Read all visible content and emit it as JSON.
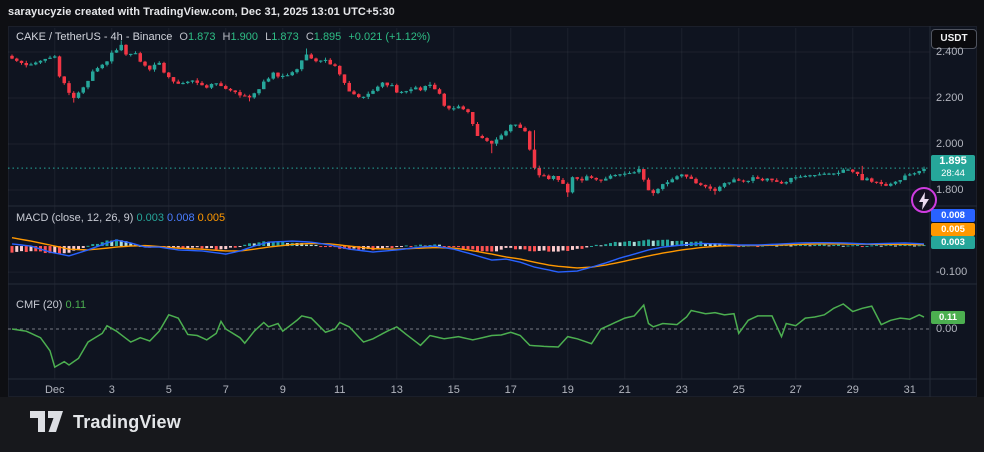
{
  "attribution": "sarayucyzie created with TradingView.com, Dec 31, 2025 13:01 UTC+5:30",
  "footer": {
    "brand": "TradingView"
  },
  "price_axis": {
    "currency_button": "USDT"
  },
  "chart_data": [
    {
      "type": "candlestick",
      "title": "CAKE / TetherUS - 4h - Binance",
      "legend": {
        "series": "CAKE / TetherUS - 4h - Binance",
        "o_label": "O",
        "o": "1.873",
        "h_label": "H",
        "h": "1.900",
        "l_label": "L",
        "l": "1.873",
        "c_label": "C",
        "c": "1.895",
        "change": "+0.021 (+1.12%)"
      },
      "last_price": 1.895,
      "countdown": "28:44",
      "ylim": [
        2.504,
        1.735
      ],
      "y_ticks": [
        2.4,
        2.2,
        2.0,
        1.8
      ],
      "x_labels": [
        "Dec",
        "3",
        "5",
        "7",
        "9",
        "11",
        "13",
        "15",
        "17",
        "19",
        "21",
        "23",
        "25",
        "27",
        "29",
        "31"
      ],
      "x_label_start_index": 9,
      "x_label_step": 12,
      "candle_count": 193,
      "close_path": [
        [
          0,
          2.37
        ],
        [
          2,
          2.355
        ],
        [
          4,
          2.34
        ],
        [
          7,
          2.37
        ],
        [
          9,
          2.385
        ],
        [
          10,
          2.3
        ],
        [
          12,
          2.22
        ],
        [
          13,
          2.2
        ],
        [
          15,
          2.25
        ],
        [
          17,
          2.31
        ],
        [
          20,
          2.36
        ],
        [
          21,
          2.4
        ],
        [
          23,
          2.425
        ],
        [
          24,
          2.385
        ],
        [
          26,
          2.395
        ],
        [
          27,
          2.36
        ],
        [
          29,
          2.33
        ],
        [
          31,
          2.35
        ],
        [
          32,
          2.31
        ],
        [
          34,
          2.275
        ],
        [
          36,
          2.26
        ],
        [
          38,
          2.275
        ],
        [
          41,
          2.25
        ],
        [
          43,
          2.26
        ],
        [
          45,
          2.24
        ],
        [
          47,
          2.23
        ],
        [
          49,
          2.205
        ],
        [
          50,
          2.2
        ],
        [
          52,
          2.24
        ],
        [
          53,
          2.275
        ],
        [
          55,
          2.305
        ],
        [
          56,
          2.29
        ],
        [
          58,
          2.3
        ],
        [
          60,
          2.33
        ],
        [
          62,
          2.385
        ],
        [
          63,
          2.37
        ],
        [
          64,
          2.36
        ],
        [
          66,
          2.37
        ],
        [
          68,
          2.335
        ],
        [
          70,
          2.265
        ],
        [
          71,
          2.23
        ],
        [
          73,
          2.21
        ],
        [
          74,
          2.2
        ],
        [
          76,
          2.23
        ],
        [
          78,
          2.27
        ],
        [
          80,
          2.25
        ],
        [
          81,
          2.22
        ],
        [
          83,
          2.23
        ],
        [
          85,
          2.25
        ],
        [
          86,
          2.24
        ],
        [
          88,
          2.255
        ],
        [
          90,
          2.22
        ],
        [
          91,
          2.17
        ],
        [
          93,
          2.15
        ],
        [
          94,
          2.16
        ],
        [
          96,
          2.14
        ],
        [
          97,
          2.09
        ],
        [
          98,
          2.04
        ],
        [
          99,
          2.02
        ],
        [
          101,
          2.0
        ],
        [
          102,
          2.02
        ],
        [
          104,
          2.06
        ],
        [
          105,
          2.09
        ],
        [
          106,
          2.08
        ],
        [
          108,
          2.055
        ],
        [
          110,
          1.9
        ],
        [
          111,
          1.87
        ],
        [
          113,
          1.845
        ],
        [
          114,
          1.86
        ],
        [
          116,
          1.83
        ],
        [
          117,
          1.795
        ],
        [
          118,
          1.85
        ],
        [
          120,
          1.84
        ],
        [
          121,
          1.86
        ],
        [
          123,
          1.85
        ],
        [
          125,
          1.845
        ],
        [
          126,
          1.86
        ],
        [
          128,
          1.87
        ],
        [
          130,
          1.88
        ],
        [
          131,
          1.872
        ],
        [
          132,
          1.888
        ],
        [
          134,
          1.8
        ],
        [
          135,
          1.79
        ],
        [
          136,
          1.81
        ],
        [
          138,
          1.83
        ],
        [
          140,
          1.86
        ],
        [
          141,
          1.87
        ],
        [
          143,
          1.855
        ],
        [
          144,
          1.825
        ],
        [
          146,
          1.815
        ],
        [
          148,
          1.8
        ],
        [
          149,
          1.82
        ],
        [
          151,
          1.83
        ],
        [
          152,
          1.845
        ],
        [
          154,
          1.84
        ],
        [
          156,
          1.85
        ],
        [
          158,
          1.84
        ],
        [
          159,
          1.85
        ],
        [
          161,
          1.84
        ],
        [
          163,
          1.83
        ],
        [
          164,
          1.85
        ],
        [
          166,
          1.86
        ],
        [
          168,
          1.87
        ],
        [
          169,
          1.86
        ],
        [
          171,
          1.87
        ],
        [
          173,
          1.875
        ],
        [
          174,
          1.88
        ],
        [
          176,
          1.885
        ],
        [
          178,
          1.87
        ],
        [
          179,
          1.845
        ],
        [
          180,
          1.855
        ],
        [
          182,
          1.83
        ],
        [
          184,
          1.818
        ],
        [
          186,
          1.84
        ],
        [
          188,
          1.858
        ],
        [
          190,
          1.872
        ],
        [
          192,
          1.895
        ]
      ],
      "wicks": [
        [
          13,
          "l",
          2.18
        ],
        [
          23,
          "h",
          2.45
        ],
        [
          50,
          "l",
          2.185
        ],
        [
          62,
          "h",
          2.415
        ],
        [
          88,
          "h",
          2.27
        ],
        [
          101,
          "l",
          1.96
        ],
        [
          110,
          "h",
          2.06
        ],
        [
          117,
          "l",
          1.77
        ],
        [
          132,
          "h",
          1.905
        ],
        [
          135,
          "l",
          1.775
        ],
        [
          148,
          "l",
          1.78
        ],
        [
          179,
          "h",
          1.905
        ]
      ],
      "colors": {
        "up": "#26a69a",
        "down": "#f23645",
        "price_line": "#26a69a",
        "badge": "#26a69a"
      }
    },
    {
      "type": "macd",
      "legend": {
        "title": "MACD",
        "params": "(close, 12, 26, 9)",
        "hist": "0.003",
        "macd": "0.008",
        "signal": "0.005"
      },
      "ylim": [
        0.15,
        -0.142
      ],
      "y_ticks": [
        -0.1
      ],
      "badges": [
        {
          "value": "0.008",
          "color": "#2962ff"
        },
        {
          "value": "0.005",
          "color": "#ff9800"
        },
        {
          "value": "0.003",
          "color": "#26a69a"
        }
      ],
      "macd_path": [
        [
          0,
          0.008
        ],
        [
          4,
          0
        ],
        [
          8,
          -0.023
        ],
        [
          12,
          -0.038
        ],
        [
          16,
          -0.015
        ],
        [
          20,
          0.012
        ],
        [
          22,
          0.023
        ],
        [
          25,
          0.012
        ],
        [
          28,
          -0.004
        ],
        [
          31,
          -0.004
        ],
        [
          35,
          -0.015
        ],
        [
          40,
          -0.019
        ],
        [
          45,
          -0.031
        ],
        [
          48,
          -0.019
        ],
        [
          51,
          0
        ],
        [
          54,
          0.015
        ],
        [
          59,
          0.019
        ],
        [
          63,
          0.015
        ],
        [
          67,
          0.004
        ],
        [
          71,
          -0.012
        ],
        [
          76,
          -0.023
        ],
        [
          81,
          -0.015
        ],
        [
          86,
          -0.004
        ],
        [
          89,
          0
        ],
        [
          93,
          -0.012
        ],
        [
          96,
          -0.027
        ],
        [
          101,
          -0.054
        ],
        [
          104,
          -0.05
        ],
        [
          107,
          -0.062
        ],
        [
          110,
          -0.081
        ],
        [
          113,
          -0.092
        ],
        [
          115,
          -0.1
        ],
        [
          119,
          -0.096
        ],
        [
          122,
          -0.081
        ],
        [
          125,
          -0.065
        ],
        [
          128,
          -0.046
        ],
        [
          131,
          -0.031
        ],
        [
          134,
          -0.015
        ],
        [
          137,
          -0.004
        ],
        [
          141,
          0.004
        ],
        [
          145,
          0.01
        ],
        [
          149,
          0.008
        ],
        [
          153,
          0.004
        ],
        [
          157,
          0.004
        ],
        [
          162,
          0.008
        ],
        [
          166,
          0.012
        ],
        [
          170,
          0.013
        ],
        [
          175,
          0.012
        ],
        [
          180,
          0.008
        ],
        [
          184,
          0.01
        ],
        [
          188,
          0.012
        ],
        [
          192,
          0.008
        ]
      ],
      "signal_path": [
        [
          0,
          0.032
        ],
        [
          4,
          0.019
        ],
        [
          8,
          0.004
        ],
        [
          12,
          -0.012
        ],
        [
          16,
          -0.015
        ],
        [
          20,
          -0.008
        ],
        [
          22,
          -0.004
        ],
        [
          25,
          0
        ],
        [
          28,
          0.002
        ],
        [
          31,
          -0.002
        ],
        [
          35,
          -0.008
        ],
        [
          40,
          -0.012
        ],
        [
          45,
          -0.019
        ],
        [
          48,
          -0.019
        ],
        [
          51,
          -0.012
        ],
        [
          54,
          -0.004
        ],
        [
          59,
          0.006
        ],
        [
          63,
          0.01
        ],
        [
          67,
          0.008
        ],
        [
          71,
          0
        ],
        [
          76,
          -0.01
        ],
        [
          81,
          -0.012
        ],
        [
          86,
          -0.008
        ],
        [
          89,
          -0.006
        ],
        [
          93,
          -0.008
        ],
        [
          96,
          -0.015
        ],
        [
          101,
          -0.031
        ],
        [
          104,
          -0.042
        ],
        [
          107,
          -0.05
        ],
        [
          110,
          -0.062
        ],
        [
          113,
          -0.073
        ],
        [
          115,
          -0.078
        ],
        [
          119,
          -0.084
        ],
        [
          122,
          -0.081
        ],
        [
          125,
          -0.073
        ],
        [
          128,
          -0.062
        ],
        [
          131,
          -0.05
        ],
        [
          134,
          -0.038
        ],
        [
          137,
          -0.027
        ],
        [
          141,
          -0.015
        ],
        [
          145,
          -0.006
        ],
        [
          149,
          0
        ],
        [
          153,
          0.002
        ],
        [
          157,
          0.002
        ],
        [
          162,
          0.004
        ],
        [
          166,
          0.006
        ],
        [
          170,
          0.008
        ],
        [
          175,
          0.008
        ],
        [
          180,
          0.007
        ],
        [
          184,
          0.006
        ],
        [
          188,
          0.006
        ],
        [
          192,
          0.005
        ]
      ],
      "colors": {
        "macd": "#2962ff",
        "signal": "#ff9800",
        "hist_up": "#26a69a",
        "hist_up_fade": "#b2dfdb",
        "hist_down": "#ff5252",
        "hist_down_fade": "#fccbcd"
      }
    },
    {
      "type": "line",
      "legend": {
        "title": "CMF",
        "params": "(20)",
        "value": "0.11"
      },
      "ylim": [
        0.404,
        -0.45
      ],
      "zero_label": "0.00",
      "badge": {
        "value": "0.11",
        "color": "#4caf50"
      },
      "path": [
        [
          0,
          0
        ],
        [
          3,
          -0.02
        ],
        [
          6,
          -0.08
        ],
        [
          8,
          -0.2
        ],
        [
          9,
          -0.35
        ],
        [
          11,
          -0.3
        ],
        [
          12,
          -0.33
        ],
        [
          14,
          -0.27
        ],
        [
          16,
          -0.12
        ],
        [
          19,
          -0.04
        ],
        [
          20,
          0.03
        ],
        [
          22,
          -0.02
        ],
        [
          25,
          -0.12
        ],
        [
          27,
          -0.08
        ],
        [
          29,
          -0.11
        ],
        [
          31,
          -0.02
        ],
        [
          33,
          0.13
        ],
        [
          35,
          0.1
        ],
        [
          37,
          -0.05
        ],
        [
          39,
          -0.06
        ],
        [
          41,
          -0.1
        ],
        [
          43,
          -0.04
        ],
        [
          44,
          0.07
        ],
        [
          45,
          0
        ],
        [
          48,
          -0.08
        ],
        [
          49,
          -0.13
        ],
        [
          51,
          -0.02
        ],
        [
          53,
          0.06
        ],
        [
          54,
          0.02
        ],
        [
          56,
          0.05
        ],
        [
          57,
          -0.02
        ],
        [
          60,
          0.08
        ],
        [
          61,
          0.12
        ],
        [
          63,
          0.1
        ],
        [
          66,
          -0.03
        ],
        [
          68,
          0
        ],
        [
          69,
          0.06
        ],
        [
          71,
          0.02
        ],
        [
          74,
          -0.12
        ],
        [
          76,
          -0.09
        ],
        [
          79,
          -0.02
        ],
        [
          81,
          0.02
        ],
        [
          83,
          -0.05
        ],
        [
          86,
          -0.15
        ],
        [
          88,
          -0.06
        ],
        [
          91,
          -0.09
        ],
        [
          94,
          -0.07
        ],
        [
          97,
          -0.1
        ],
        [
          101,
          -0.06
        ],
        [
          103,
          -0.055
        ],
        [
          105,
          -0.03
        ],
        [
          107,
          -0.06
        ],
        [
          109,
          -0.15
        ],
        [
          112,
          -0.16
        ],
        [
          115,
          -0.165
        ],
        [
          117,
          -0.07
        ],
        [
          119,
          -0.09
        ],
        [
          122,
          -0.135
        ],
        [
          124,
          0
        ],
        [
          126,
          0.04
        ],
        [
          129,
          0.1
        ],
        [
          131,
          0.12
        ],
        [
          133,
          0.22
        ],
        [
          134,
          0.05
        ],
        [
          135,
          0.02
        ],
        [
          137,
          0.05
        ],
        [
          140,
          0.04
        ],
        [
          142,
          0.11
        ],
        [
          143,
          0.17
        ],
        [
          146,
          0.14
        ],
        [
          148,
          0.15
        ],
        [
          150,
          0.13
        ],
        [
          152,
          0.14
        ],
        [
          153,
          -0.04
        ],
        [
          155,
          0.08
        ],
        [
          157,
          0.12
        ],
        [
          160,
          0.12
        ],
        [
          162,
          -0.07
        ],
        [
          163,
          0.05
        ],
        [
          165,
          0.03
        ],
        [
          167,
          0.1
        ],
        [
          169,
          0.11
        ],
        [
          171,
          0.13
        ],
        [
          173,
          0.19
        ],
        [
          175,
          0.23
        ],
        [
          177,
          0.16
        ],
        [
          179,
          0.19
        ],
        [
          181,
          0.21
        ],
        [
          183,
          0.04
        ],
        [
          185,
          0.08
        ],
        [
          187,
          0.1
        ],
        [
          189,
          0.09
        ],
        [
          191,
          0.13
        ],
        [
          192,
          0.11
        ]
      ],
      "colors": {
        "line": "#4caf50"
      }
    }
  ]
}
